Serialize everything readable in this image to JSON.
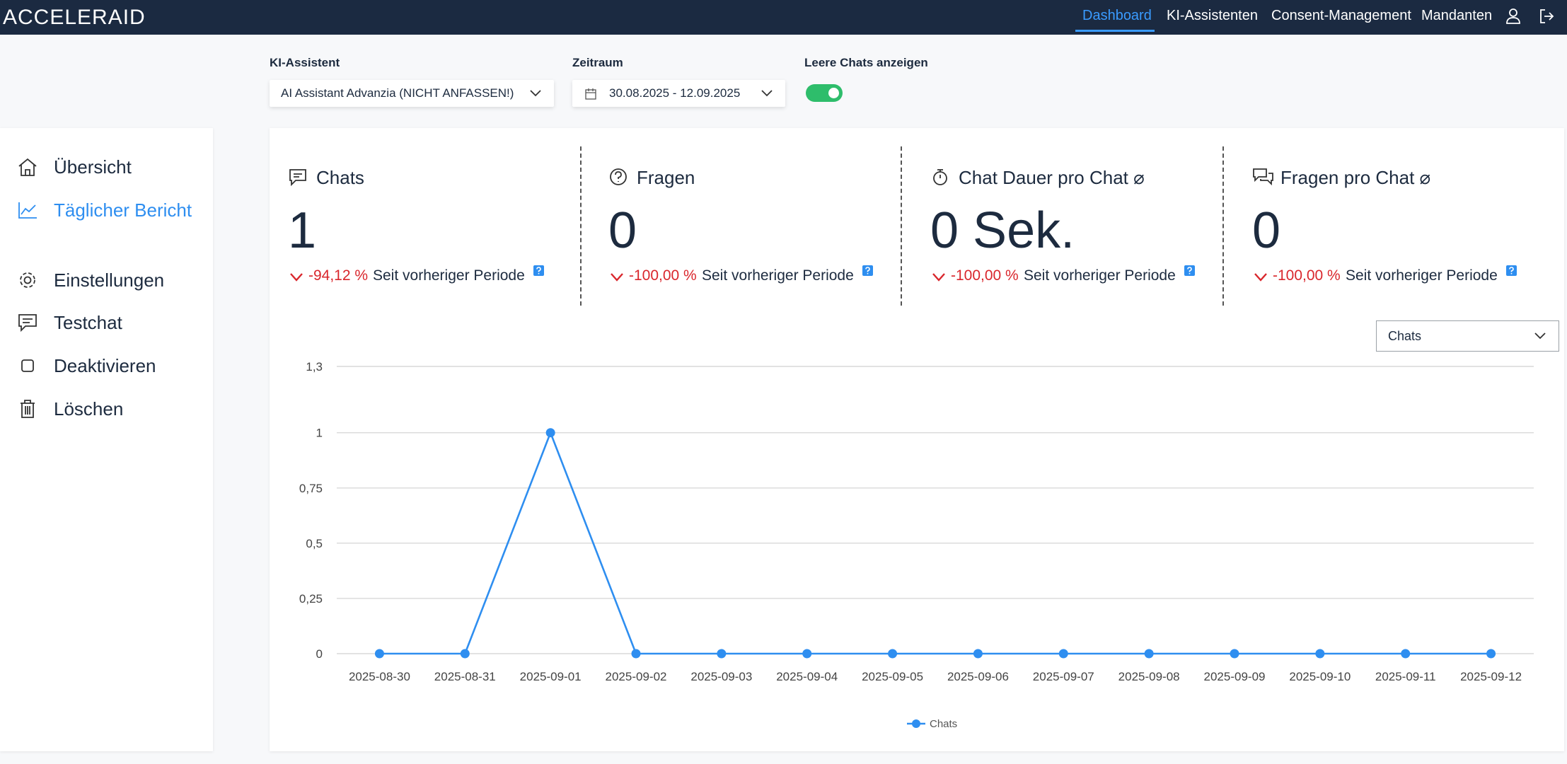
{
  "header": {
    "logo": "ACCELERAID",
    "nav": [
      "Dashboard",
      "KI-Assistenten",
      "Consent-Management",
      "Mandanten"
    ]
  },
  "filters": {
    "assistant_label": "KI-Assistent",
    "assistant_value": "AI Assistant Advanzia (NICHT ANFASSEN!)",
    "period_label": "Zeitraum",
    "period_value": "30.08.2025 - 12.09.2025",
    "empty_chats_label": "Leere Chats anzeigen"
  },
  "sidebar": [
    "Übersicht",
    "Täglicher Bericht",
    "Einstellungen",
    "Testchat",
    "Deaktivieren",
    "Löschen"
  ],
  "stats": [
    {
      "title": "Chats",
      "value": "1",
      "change": "-94,12 %",
      "period": "Seit vorheriger Periode"
    },
    {
      "title": "Fragen",
      "value": "0",
      "change": "-100,00 %",
      "period": "Seit vorheriger Periode"
    },
    {
      "title": "Chat Dauer pro Chat ⌀",
      "value": "0 Sek.",
      "change": "-100,00 %",
      "period": "Seit vorheriger Periode"
    },
    {
      "title": "Fragen pro Chat ⌀",
      "value": "0",
      "change": "-100,00 %",
      "period": "Seit vorheriger Periode"
    }
  ],
  "chart_selector": "Chats",
  "chart_data": {
    "type": "line",
    "categories": [
      "2025-08-30",
      "2025-08-31",
      "2025-09-01",
      "2025-09-02",
      "2025-09-03",
      "2025-09-04",
      "2025-09-05",
      "2025-09-06",
      "2025-09-07",
      "2025-09-08",
      "2025-09-09",
      "2025-09-10",
      "2025-09-11",
      "2025-09-12"
    ],
    "series": [
      {
        "name": "Chats",
        "color": "#2e8ef0",
        "values": [
          0,
          0,
          1,
          0,
          0,
          0,
          0,
          0,
          0,
          0,
          0,
          0,
          0,
          0
        ]
      }
    ],
    "ylim": [
      0,
      1.3
    ],
    "yticks": [
      0,
      {
        "value": 0.25,
        "label": "0,25"
      },
      {
        "value": 0.5,
        "label": "0,5"
      },
      {
        "value": 0.75,
        "label": "0,75"
      },
      1,
      {
        "value": 1.3,
        "label": "1,3"
      }
    ],
    "grid": true,
    "legend": "bottom"
  }
}
